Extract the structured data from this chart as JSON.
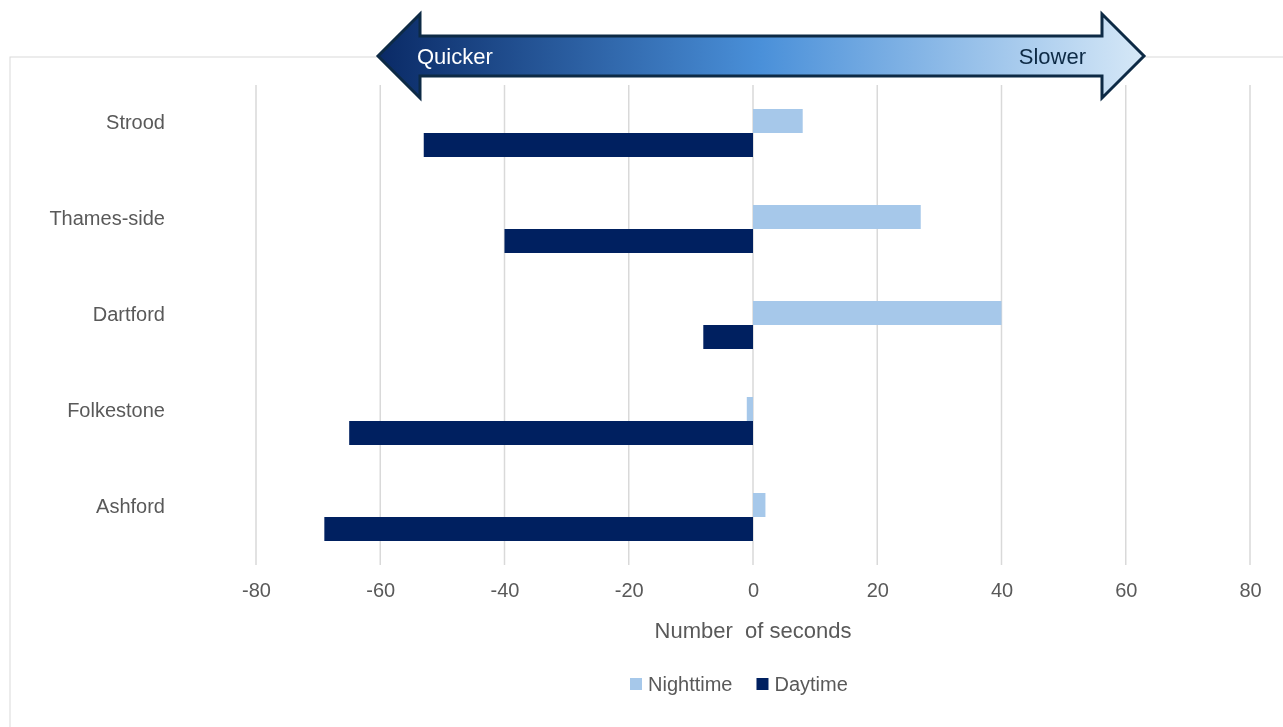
{
  "chart_data": {
    "type": "bar",
    "orientation": "horizontal",
    "categories": [
      "Strood",
      "Thames-side",
      "Dartford",
      "Folkestone",
      "Ashford"
    ],
    "series": [
      {
        "name": "Nighttime",
        "color": "#a6c8ea",
        "values": [
          8,
          27,
          40,
          -1,
          2
        ]
      },
      {
        "name": "Daytime",
        "color": "#002060",
        "values": [
          -53,
          -40,
          -8,
          -65,
          -69
        ]
      }
    ],
    "xlim": [
      -80,
      80
    ],
    "xticks": [
      -80,
      -60,
      -40,
      -20,
      0,
      20,
      40,
      60,
      80
    ],
    "xlabel": "Number  of seconds",
    "grid": "x",
    "legend": "bottom",
    "annotations": [
      "Quicker",
      "Slower"
    ]
  }
}
